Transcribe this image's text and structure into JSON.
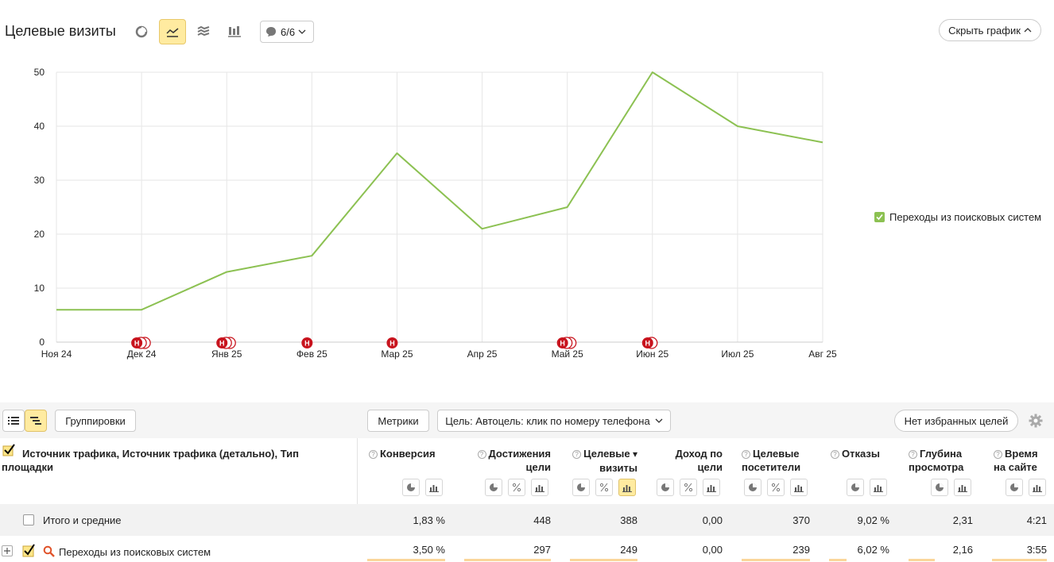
{
  "header": {
    "title": "Целевые визиты",
    "annotations_label": "6/6",
    "hide_chart_label": "Скрыть график"
  },
  "chart_data": {
    "type": "line",
    "x": [
      "Ноя 24",
      "Дек 24",
      "Янв 25",
      "Фев 25",
      "Мар 25",
      "Апр 25",
      "Май 25",
      "Июн 25",
      "Июл 25",
      "Авг 25"
    ],
    "series": [
      {
        "name": "Переходы из поисковых систем",
        "values": [
          6,
          6,
          13,
          16,
          35,
          21,
          25,
          50,
          40,
          37
        ],
        "color": "#8cc152"
      }
    ],
    "ylim": [
      0,
      50
    ],
    "yticks": [
      0,
      10,
      20,
      30,
      40,
      50
    ],
    "grid": true,
    "legend": "right",
    "markers": [
      {
        "x": "Дек 24",
        "count": 3,
        "label": "Н"
      },
      {
        "x": "Янв 25",
        "count": 3,
        "label": "Н"
      },
      {
        "x": "Фев 25",
        "count": 1,
        "label": "Н"
      },
      {
        "x": "Мар 25",
        "count": 1,
        "label": "Н"
      },
      {
        "x": "Май 25",
        "count": 3,
        "label": "Н"
      },
      {
        "x": "Июн 25",
        "count": 2,
        "label": "Н"
      }
    ]
  },
  "toolbar": {
    "groupings_label": "Группировки",
    "metrics_label": "Метрики",
    "goal_label": "Цель: Автоцель: клик по номеру телефона",
    "favorites_label": "Нет избранных целей"
  },
  "table": {
    "dimension_header": "Источник трафика, Источник трафика (детально), Тип площадки",
    "columns": [
      {
        "label": "Конверсия",
        "line1": "Конверсия",
        "line2": ""
      },
      {
        "label": "Достижения цели",
        "line1": "Достижения",
        "line2": "цели"
      },
      {
        "label": "Целевые визиты",
        "line1": "Целевые",
        "line2": "визиты"
      },
      {
        "label": "Доход по цели",
        "line1": "Доход по",
        "line2": "цели"
      },
      {
        "label": "Целевые посетители",
        "line1": "Целевые",
        "line2": "посетители"
      },
      {
        "label": "Отказы",
        "line1": "Отказы",
        "line2": ""
      },
      {
        "label": "Глубина просмотра",
        "line1": "Глубина",
        "line2": "просмотра"
      },
      {
        "label": "Время на сайте",
        "line1": "Время",
        "line2": "на сайте"
      }
    ],
    "rows": [
      {
        "label": "Итого и средние",
        "values": [
          "1,83 %",
          "448",
          "388",
          "0,00",
          "370",
          "9,02 %",
          "2,31",
          "4:21"
        ]
      },
      {
        "label": "Переходы из поисковых систем",
        "values": [
          "3,50 %",
          "297",
          "249",
          "0,00",
          "239",
          "6,02 %",
          "2,16",
          "3:55"
        ]
      }
    ]
  }
}
